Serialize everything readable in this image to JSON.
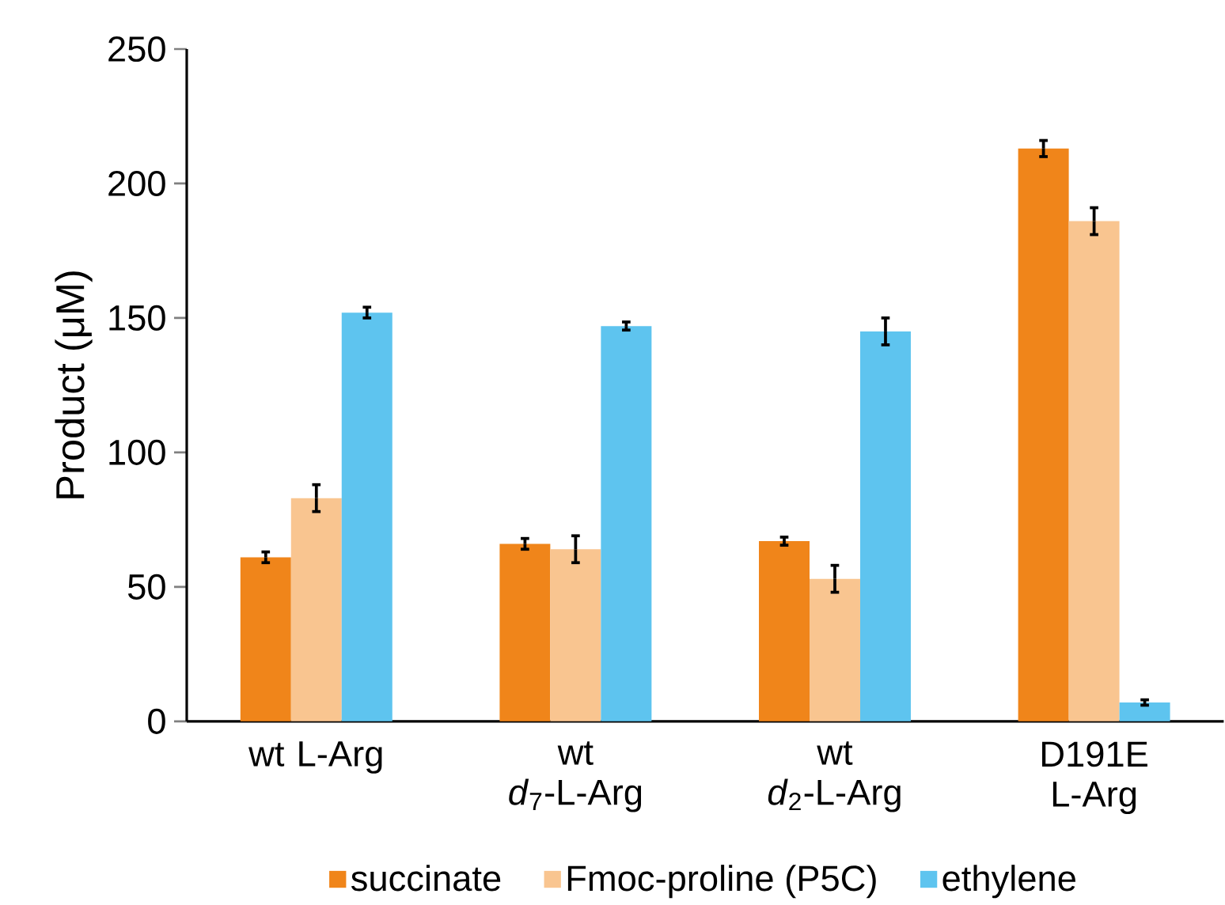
{
  "chart_data": {
    "type": "bar",
    "ylabel": "Product (μM)",
    "categories": [
      "wt L-Arg",
      "wt *d*$_{7}$-L-Arg",
      "wt *d*$_{2}$-L-Arg",
      "D191E L-Arg"
    ],
    "series": [
      {
        "name": "succinate",
        "color": "#f0851a",
        "values": [
          61,
          66,
          67,
          213
        ],
        "errors": [
          2,
          2,
          1.5,
          3
        ]
      },
      {
        "name": "Fmoc-proline (P5C)",
        "color": "#f9c590",
        "values": [
          83,
          64,
          53,
          186
        ],
        "errors": [
          5,
          5,
          5,
          5
        ]
      },
      {
        "name": "ethylene",
        "color": "#5ec4ef",
        "values": [
          152,
          147,
          145,
          7
        ],
        "errors": [
          2,
          1.5,
          5,
          1
        ]
      }
    ],
    "ylim": [
      0,
      250
    ],
    "yticks": [
      0,
      50,
      100,
      150,
      200,
      250
    ],
    "legend": "bottom"
  }
}
